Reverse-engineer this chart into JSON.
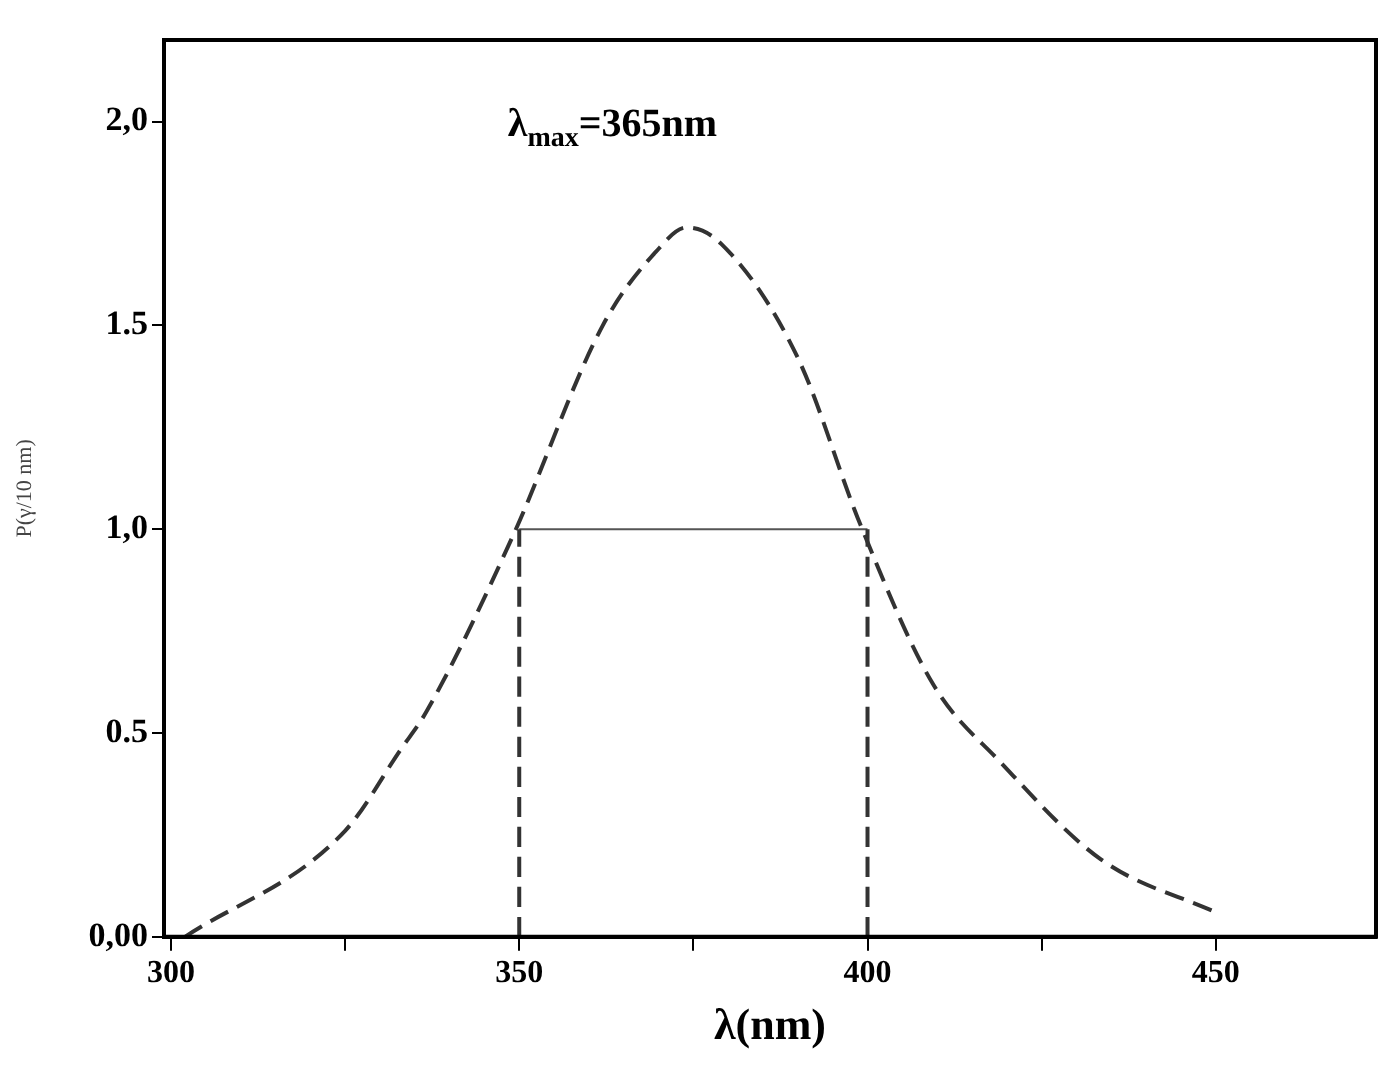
{
  "chart_data": {
    "type": "line",
    "xlabel": "λ(nm)",
    "ylabel": "P(γ/10 nm)",
    "annotations": [
      "λ$_{max}$=365nm"
    ],
    "xlim": [
      299,
      473
    ],
    "xticks": [
      300,
      {
        "value": 325,
        "label": null
      },
      350,
      {
        "value": 375,
        "label": null
      },
      400,
      {
        "value": 425,
        "label": null
      },
      450
    ],
    "ylim": [
      0,
      2.2
    ],
    "yticks": [
      {
        "value": 0,
        "label": "0,00"
      },
      0.5,
      {
        "value": 1,
        "label": "1,0"
      },
      1.5,
      {
        "value": 2,
        "label": "2,0"
      }
    ],
    "grid": false,
    "legend": false,
    "marker": "none",
    "series": [
      {
        "color": "#333333",
        "line_style": "dashed",
        "x": [
          302,
          325,
          333,
          336.6,
          349,
          362,
          369.6,
          374,
          379,
          390,
          399,
          409.4,
          419,
          433.5,
          450
        ],
        "values": [
          0,
          0.26,
          0.46,
          0.55,
          0.98,
          1.5,
          1.68,
          1.74,
          1.7,
          1.42,
          1.01,
          0.62,
          0.43,
          0.19,
          0.06
        ]
      },
      {
        "color": "#333333",
        "line_style": "dashed",
        "x": [
          350,
          350
        ],
        "values": [
          0,
          1
        ]
      },
      {
        "color": "#333333",
        "line_style": "dashed",
        "x": [
          400,
          400
        ],
        "values": [
          0,
          1
        ]
      },
      {
        "color": "#555555",
        "line_style": "solid",
        "x": [
          350,
          400
        ],
        "values": [
          1,
          1
        ]
      }
    ]
  }
}
